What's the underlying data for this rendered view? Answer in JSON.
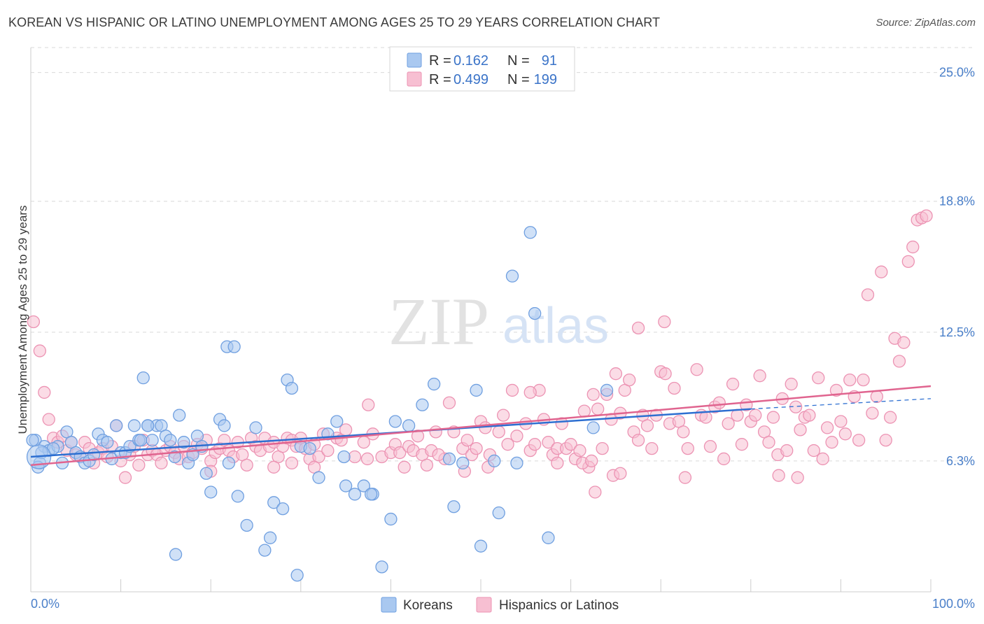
{
  "title": "KOREAN VS HISPANIC OR LATINO UNEMPLOYMENT AMONG AGES 25 TO 29 YEARS CORRELATION CHART",
  "source": "Source: ZipAtlas.com",
  "watermark": {
    "zip": "ZIP",
    "atlas": "atlas"
  },
  "colors": {
    "korean_fill": "#a9c8f0",
    "korean_stroke": "#6f9fe0",
    "korean_line": "#2d6fd1",
    "hispanic_fill": "#f7bfd2",
    "hispanic_stroke": "#ec93b3",
    "hispanic_line": "#e0648f",
    "grid": "#d9d9d9",
    "axis_text": "#4a7fc9"
  },
  "legend": {
    "rows": [
      {
        "r_label": "R =",
        "r_value": "0.162",
        "n_label": "N =",
        "n_value": "91"
      },
      {
        "r_label": "R =",
        "r_value": "0.499",
        "n_label": "N =",
        "n_value": "199"
      }
    ]
  },
  "bottom_legend": {
    "koreans": "Koreans",
    "hispanics": "Hispanics or Latinos"
  },
  "chart_data": {
    "type": "scatter",
    "title": "KOREAN VS HISPANIC OR LATINO UNEMPLOYMENT AMONG AGES 25 TO 29 YEARS CORRELATION CHART",
    "xlabel": "",
    "ylabel": "Unemployment Among Ages 25 to 29 years",
    "xlim": [
      0,
      100
    ],
    "ylim": [
      0,
      26.2
    ],
    "x_tick_labels": [
      "0.0%",
      "100.0%"
    ],
    "y_ticks": [
      6.3,
      12.5,
      18.8,
      25.0
    ],
    "y_tick_labels": [
      "6.3%",
      "12.5%",
      "18.8%",
      "25.0%"
    ],
    "grid": true,
    "series": [
      {
        "name": "Koreans",
        "r": 0.162,
        "n": 91,
        "trend": {
          "x0": 0,
          "y0": 6.5,
          "x1": 80,
          "y1": 8.8,
          "dash_to_x": 100,
          "dash_to_y": 9.3
        },
        "points": [
          [
            0.5,
            7.3
          ],
          [
            1.0,
            6.2
          ],
          [
            1.5,
            7.0
          ],
          [
            2.0,
            6.8
          ],
          [
            3.0,
            7.0
          ],
          [
            3.5,
            6.2
          ],
          [
            4.0,
            7.7
          ],
          [
            4.5,
            7.2
          ],
          [
            5.0,
            6.7
          ],
          [
            5.5,
            6.5
          ],
          [
            6.0,
            6.2
          ],
          [
            6.5,
            6.3
          ],
          [
            7.0,
            6.6
          ],
          [
            7.5,
            7.6
          ],
          [
            8.0,
            7.3
          ],
          [
            8.5,
            7.2
          ],
          [
            9.0,
            6.4
          ],
          [
            9.5,
            8.0
          ],
          [
            10.0,
            6.7
          ],
          [
            10.5,
            6.7
          ],
          [
            11.0,
            7.0
          ],
          [
            11.5,
            8.0
          ],
          [
            12.0,
            7.3
          ],
          [
            12.5,
            10.3
          ],
          [
            13.0,
            8.0
          ],
          [
            13.5,
            7.3
          ],
          [
            14.0,
            8.0
          ],
          [
            14.5,
            8.0
          ],
          [
            15.0,
            7.5
          ],
          [
            15.5,
            7.3
          ],
          [
            16.0,
            6.5
          ],
          [
            16.5,
            8.5
          ],
          [
            17.0,
            7.2
          ],
          [
            17.5,
            6.2
          ],
          [
            18.0,
            6.6
          ],
          [
            18.5,
            7.5
          ],
          [
            19.0,
            7.0
          ],
          [
            19.5,
            5.7
          ],
          [
            20.0,
            4.8
          ],
          [
            21.0,
            8.3
          ],
          [
            21.5,
            8.0
          ],
          [
            22.0,
            6.2
          ],
          [
            23.0,
            4.6
          ],
          [
            24.0,
            3.2
          ],
          [
            25.0,
            7.9
          ],
          [
            26.0,
            2.0
          ],
          [
            27.0,
            4.3
          ],
          [
            28.0,
            4.0
          ],
          [
            28.5,
            10.2
          ],
          [
            29.0,
            9.8
          ],
          [
            30.0,
            7.0
          ],
          [
            31.0,
            6.9
          ],
          [
            32.0,
            5.5
          ],
          [
            33.0,
            7.6
          ],
          [
            34.0,
            8.2
          ],
          [
            35.0,
            5.1
          ],
          [
            36.0,
            4.7
          ],
          [
            37.0,
            5.1
          ],
          [
            38.0,
            4.7
          ],
          [
            39.0,
            1.2
          ],
          [
            40.0,
            3.5
          ],
          [
            40.5,
            8.2
          ],
          [
            42.0,
            8.0
          ],
          [
            43.5,
            9.0
          ],
          [
            46.5,
            6.4
          ],
          [
            47.0,
            4.1
          ],
          [
            48.0,
            6.2
          ],
          [
            50.0,
            2.2
          ],
          [
            51.5,
            6.3
          ],
          [
            52.0,
            3.8
          ],
          [
            54.0,
            6.2
          ],
          [
            55.5,
            17.3
          ],
          [
            56.0,
            13.4
          ],
          [
            57.5,
            2.6
          ],
          [
            62.5,
            7.9
          ],
          [
            0.2,
            7.3
          ],
          [
            0.8,
            6.0
          ],
          [
            2.5,
            6.9
          ],
          [
            1.2,
            6.7
          ],
          [
            21.8,
            11.8
          ],
          [
            22.6,
            11.8
          ],
          [
            12.2,
            7.3
          ],
          [
            16.1,
            1.8
          ],
          [
            26.6,
            2.6
          ],
          [
            29.6,
            0.8
          ],
          [
            34.8,
            6.5
          ],
          [
            37.8,
            4.7
          ],
          [
            44.8,
            10.0
          ],
          [
            49.5,
            9.7
          ],
          [
            53.5,
            15.2
          ],
          [
            64.0,
            9.7
          ],
          [
            13.0,
            8.0
          ]
        ]
      },
      {
        "name": "Hispanics or Latinos",
        "r": 0.499,
        "n": 199,
        "trend": {
          "x0": 0,
          "y0": 6.1,
          "x1": 100,
          "y1": 9.9
        },
        "points": [
          [
            0.3,
            13.0
          ],
          [
            1.0,
            11.6
          ],
          [
            1.5,
            9.6
          ],
          [
            2.0,
            8.3
          ],
          [
            2.5,
            7.4
          ],
          [
            3.0,
            7.2
          ],
          [
            3.5,
            7.5
          ],
          [
            4.0,
            6.8
          ],
          [
            4.5,
            7.2
          ],
          [
            5.0,
            6.6
          ],
          [
            5.5,
            6.5
          ],
          [
            6.0,
            7.2
          ],
          [
            6.5,
            6.9
          ],
          [
            7.0,
            6.2
          ],
          [
            7.5,
            6.7
          ],
          [
            8.0,
            6.9
          ],
          [
            8.5,
            6.5
          ],
          [
            9.0,
            7.0
          ],
          [
            9.5,
            8.0
          ],
          [
            10.0,
            6.3
          ],
          [
            10.5,
            5.5
          ],
          [
            11.0,
            6.6
          ],
          [
            11.5,
            7.0
          ],
          [
            12.0,
            6.1
          ],
          [
            12.5,
            7.3
          ],
          [
            13.0,
            6.6
          ],
          [
            13.5,
            6.8
          ],
          [
            14.0,
            6.6
          ],
          [
            14.5,
            6.2
          ],
          [
            15.0,
            6.8
          ],
          [
            15.5,
            7.0
          ],
          [
            16.0,
            6.7
          ],
          [
            16.5,
            6.4
          ],
          [
            17.0,
            7.0
          ],
          [
            17.5,
            6.5
          ],
          [
            18.0,
            6.7
          ],
          [
            18.5,
            7.1
          ],
          [
            19.0,
            6.9
          ],
          [
            19.5,
            7.3
          ],
          [
            20.0,
            6.3
          ],
          [
            20.5,
            6.7
          ],
          [
            21.0,
            6.9
          ],
          [
            21.5,
            7.3
          ],
          [
            22.0,
            6.8
          ],
          [
            22.5,
            6.5
          ],
          [
            23.0,
            7.2
          ],
          [
            23.5,
            6.6
          ],
          [
            24.0,
            6.1
          ],
          [
            24.5,
            7.4
          ],
          [
            25.0,
            7.0
          ],
          [
            25.5,
            6.8
          ],
          [
            26.0,
            7.4
          ],
          [
            26.5,
            7.0
          ],
          [
            27.0,
            7.2
          ],
          [
            27.5,
            6.5
          ],
          [
            28.0,
            7.0
          ],
          [
            28.5,
            7.4
          ],
          [
            29.0,
            7.3
          ],
          [
            29.5,
            7.0
          ],
          [
            30.0,
            7.4
          ],
          [
            30.5,
            6.9
          ],
          [
            31.0,
            6.4
          ],
          [
            31.5,
            7.1
          ],
          [
            32.0,
            6.5
          ],
          [
            32.5,
            7.6
          ],
          [
            33.0,
            6.8
          ],
          [
            34.0,
            7.4
          ],
          [
            34.5,
            7.3
          ],
          [
            35.0,
            7.8
          ],
          [
            36.0,
            6.5
          ],
          [
            37.0,
            7.2
          ],
          [
            37.5,
            9.0
          ],
          [
            38.0,
            7.6
          ],
          [
            39.0,
            6.5
          ],
          [
            40.0,
            6.7
          ],
          [
            40.5,
            7.1
          ],
          [
            41.0,
            6.7
          ],
          [
            41.5,
            6.0
          ],
          [
            42.0,
            7.0
          ],
          [
            42.5,
            6.8
          ],
          [
            43.0,
            7.5
          ],
          [
            43.5,
            6.6
          ],
          [
            44.0,
            6.1
          ],
          [
            44.5,
            6.8
          ],
          [
            45.0,
            7.7
          ],
          [
            46.0,
            6.4
          ],
          [
            46.5,
            9.1
          ],
          [
            47.0,
            7.7
          ],
          [
            48.0,
            6.9
          ],
          [
            48.5,
            7.3
          ],
          [
            49.0,
            6.6
          ],
          [
            49.5,
            6.9
          ],
          [
            50.0,
            8.2
          ],
          [
            50.5,
            7.9
          ],
          [
            51.0,
            6.6
          ],
          [
            52.0,
            7.7
          ],
          [
            52.5,
            8.5
          ],
          [
            53.0,
            7.1
          ],
          [
            53.5,
            9.7
          ],
          [
            54.0,
            7.5
          ],
          [
            55.0,
            8.1
          ],
          [
            55.5,
            6.8
          ],
          [
            56.0,
            7.1
          ],
          [
            56.5,
            9.7
          ],
          [
            57.0,
            8.3
          ],
          [
            57.5,
            7.2
          ],
          [
            58.0,
            6.6
          ],
          [
            58.5,
            6.9
          ],
          [
            59.0,
            8.1
          ],
          [
            59.5,
            6.9
          ],
          [
            60.0,
            7.1
          ],
          [
            60.5,
            6.4
          ],
          [
            61.0,
            6.8
          ],
          [
            61.5,
            8.7
          ],
          [
            62.0,
            6.0
          ],
          [
            62.5,
            9.5
          ],
          [
            63.0,
            8.8
          ],
          [
            63.5,
            6.9
          ],
          [
            64.0,
            9.5
          ],
          [
            64.5,
            8.3
          ],
          [
            65.0,
            10.5
          ],
          [
            65.5,
            8.6
          ],
          [
            66.0,
            9.7
          ],
          [
            66.5,
            10.2
          ],
          [
            67.0,
            7.7
          ],
          [
            67.5,
            7.3
          ],
          [
            68.0,
            8.5
          ],
          [
            68.5,
            8.0
          ],
          [
            69.0,
            6.9
          ],
          [
            69.5,
            8.5
          ],
          [
            70.0,
            10.6
          ],
          [
            70.5,
            10.5
          ],
          [
            71.0,
            8.1
          ],
          [
            71.5,
            9.8
          ],
          [
            72.0,
            8.2
          ],
          [
            72.5,
            7.7
          ],
          [
            73.0,
            6.9
          ],
          [
            74.0,
            10.7
          ],
          [
            74.5,
            8.5
          ],
          [
            75.0,
            8.4
          ],
          [
            75.5,
            7.0
          ],
          [
            76.0,
            8.9
          ],
          [
            76.5,
            9.1
          ],
          [
            77.0,
            6.4
          ],
          [
            77.5,
            8.1
          ],
          [
            78.0,
            10.0
          ],
          [
            78.5,
            8.5
          ],
          [
            79.0,
            7.1
          ],
          [
            79.5,
            9.0
          ],
          [
            80.0,
            8.2
          ],
          [
            80.5,
            8.5
          ],
          [
            81.0,
            10.4
          ],
          [
            81.5,
            7.7
          ],
          [
            82.0,
            7.2
          ],
          [
            82.5,
            8.4
          ],
          [
            83.0,
            6.6
          ],
          [
            83.5,
            9.3
          ],
          [
            84.0,
            6.8
          ],
          [
            84.5,
            10.0
          ],
          [
            85.0,
            8.9
          ],
          [
            85.5,
            7.8
          ],
          [
            86.0,
            8.4
          ],
          [
            86.5,
            8.5
          ],
          [
            87.0,
            6.8
          ],
          [
            87.5,
            10.3
          ],
          [
            88.0,
            6.4
          ],
          [
            88.5,
            7.9
          ],
          [
            89.0,
            7.2
          ],
          [
            89.5,
            9.7
          ],
          [
            90.0,
            8.2
          ],
          [
            90.5,
            7.6
          ],
          [
            91.0,
            10.2
          ],
          [
            91.5,
            9.4
          ],
          [
            92.0,
            7.3
          ],
          [
            92.5,
            10.2
          ],
          [
            93.0,
            14.3
          ],
          [
            93.5,
            8.6
          ],
          [
            94.0,
            9.4
          ],
          [
            94.5,
            15.4
          ],
          [
            95.0,
            7.3
          ],
          [
            95.5,
            8.4
          ],
          [
            96.0,
            12.2
          ],
          [
            96.5,
            11.1
          ],
          [
            97.0,
            12.0
          ],
          [
            97.5,
            15.9
          ],
          [
            98.0,
            16.6
          ],
          [
            98.5,
            17.9
          ],
          [
            99.0,
            18.0
          ],
          [
            99.5,
            18.1
          ],
          [
            55.5,
            9.6
          ],
          [
            67.5,
            12.7
          ],
          [
            70.4,
            13.0
          ],
          [
            58.5,
            6.2
          ],
          [
            62.7,
            4.8
          ],
          [
            61.3,
            6.2
          ],
          [
            62.3,
            6.3
          ],
          [
            64.7,
            5.6
          ],
          [
            65.5,
            5.7
          ],
          [
            72.7,
            5.5
          ],
          [
            83.1,
            5.6
          ],
          [
            85.2,
            5.5
          ],
          [
            48.2,
            5.8
          ],
          [
            37.4,
            6.4
          ],
          [
            50.8,
            6.0
          ],
          [
            45.3,
            6.6
          ],
          [
            31.5,
            6.0
          ],
          [
            29.0,
            6.2
          ],
          [
            27.0,
            6.0
          ],
          [
            20.0,
            5.8
          ]
        ]
      }
    ]
  }
}
